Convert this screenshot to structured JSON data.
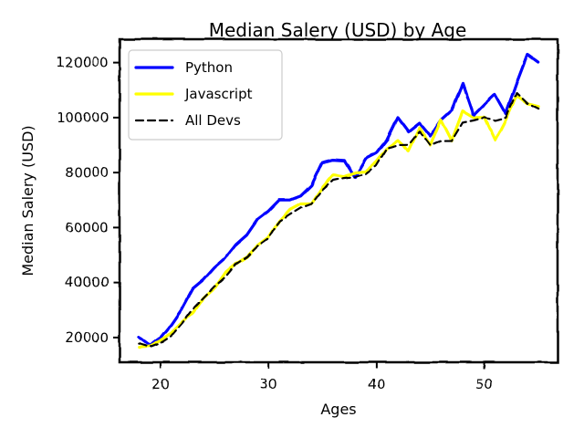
{
  "chart_data": {
    "type": "line",
    "title": "Median Salery (USD) by Age",
    "xlabel": "Ages",
    "ylabel": "Median Salery (USD)",
    "xlim": [
      16.2,
      56.8
    ],
    "ylim": [
      11000,
      128500
    ],
    "xticks": [
      20,
      30,
      40,
      50
    ],
    "yticks": [
      20000,
      40000,
      60000,
      80000,
      100000,
      120000
    ],
    "grid": false,
    "legend_position": "top-left",
    "x": [
      18,
      19,
      20,
      21,
      22,
      23,
      24,
      25,
      26,
      27,
      28,
      29,
      30,
      31,
      32,
      33,
      34,
      35,
      36,
      37,
      38,
      39,
      40,
      41,
      42,
      43,
      44,
      45,
      46,
      47,
      48,
      49,
      50,
      51,
      52,
      53,
      54,
      55
    ],
    "series": [
      {
        "name": "Python",
        "color": "#0000ff",
        "dash": "solid",
        "values": [
          20046,
          17100,
          20000,
          24744,
          30500,
          37732,
          41000,
          45372,
          48876,
          53850,
          57287,
          63016,
          65998,
          70003,
          70000,
          71496,
          75370,
          83640,
          84666,
          84392,
          78254,
          85000,
          87038,
          91991,
          100000,
          94796,
          97962,
          93302,
          99240,
          102736,
          112285,
          100771,
          104708,
          108423,
          101407,
          112542,
          122870,
          120000
        ]
      },
      {
        "name": "Javascript",
        "color": "#ffff00",
        "dash": "solid",
        "values": [
          16446,
          16791,
          18942,
          21780,
          25704,
          29000,
          34372,
          37810,
          43515,
          46823,
          49293,
          53437,
          56373,
          62375,
          66674,
          68745,
          68746,
          74583,
          79000,
          78508,
          79996,
          80403,
          83820,
          88833,
          91660,
          87892,
          96243,
          90000,
          99313,
          91660,
          102264,
          100000,
          100000,
          91660,
          99240,
          108000,
          105000,
          104000
        ]
      },
      {
        "name": "All Devs",
        "color": "#000000",
        "dash": "dashed",
        "values": [
          17784,
          16500,
          18012,
          20628,
          25206,
          30252,
          34368,
          38496,
          42000,
          46752,
          49320,
          53200,
          56000,
          62316,
          64928,
          67317,
          68748,
          73752,
          77232,
          78000,
          78508,
          79536,
          82488,
          88935,
          90000,
          90056,
          95000,
          90000,
          91633,
          91660,
          98150,
          98964,
          100000,
          98988,
          100000,
          108923,
          105000,
          103117
        ]
      }
    ]
  }
}
